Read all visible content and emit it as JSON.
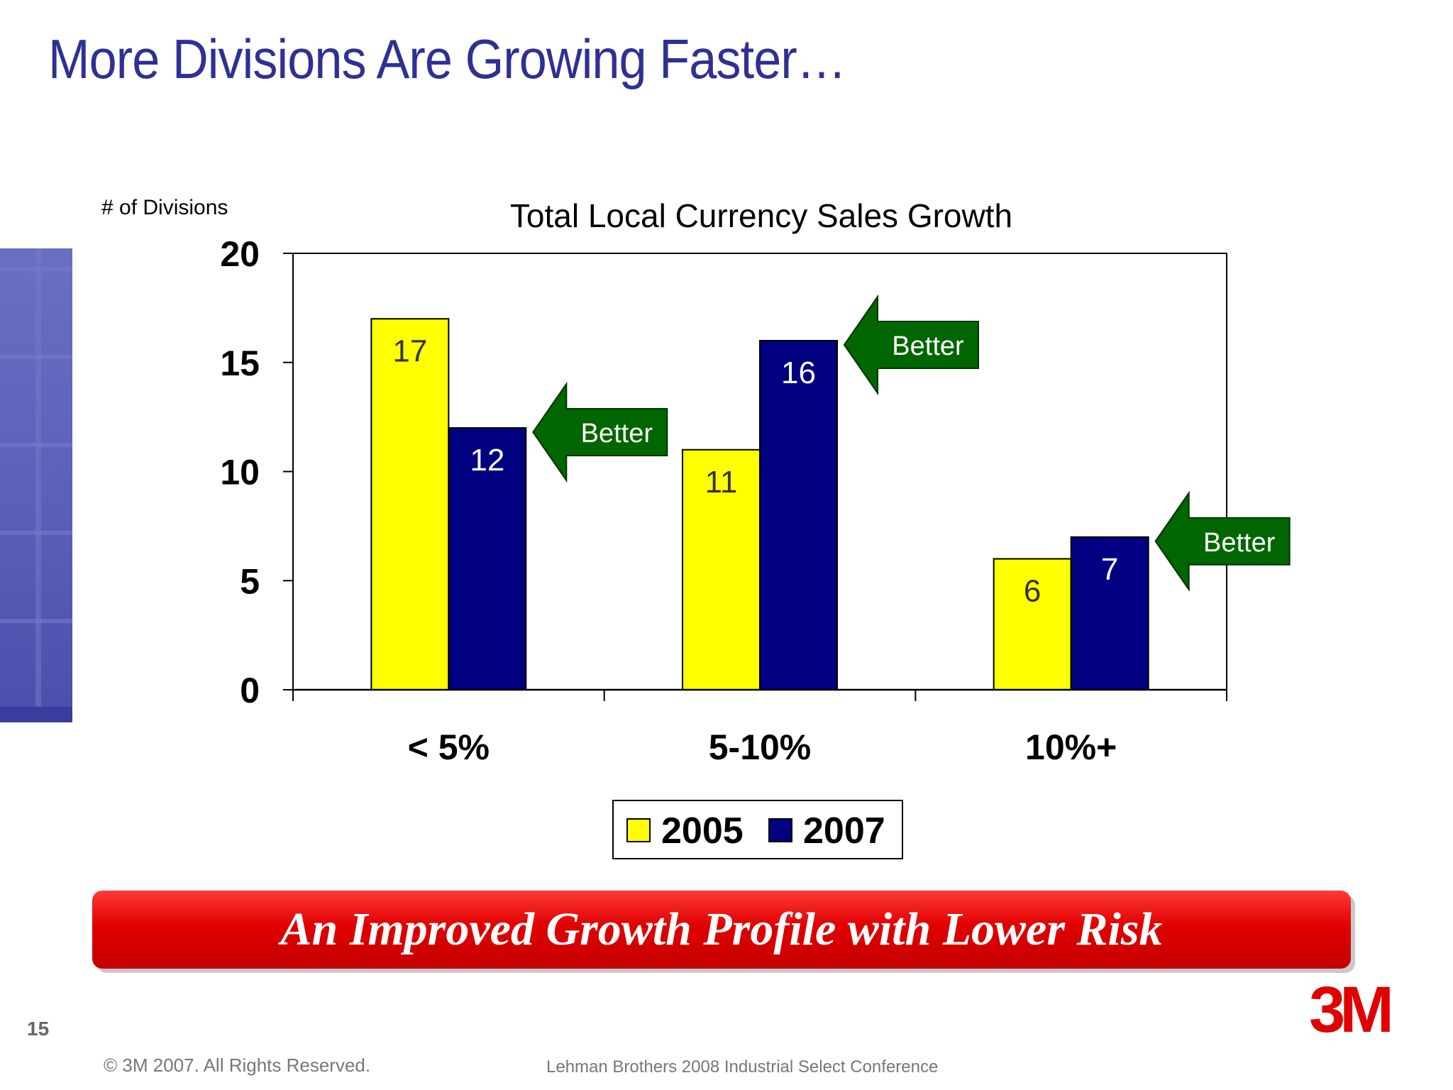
{
  "slide": {
    "title": "More Divisions Are Growing Faster…",
    "banner": "An Improved Growth Profile with Lower Risk",
    "page_number": "15",
    "copyright": "© 3M 2007.  All Rights Reserved.",
    "conference": "Lehman Brothers 2008 Industrial Select Conference",
    "logo_text": "3M"
  },
  "chart_data": {
    "type": "bar",
    "title": "Total Local Currency Sales Growth",
    "ylabel": "# of Divisions",
    "xlabel": "",
    "categories": [
      "< 5%",
      "5-10%",
      "10%+"
    ],
    "series": [
      {
        "name": "2005",
        "values": [
          17,
          11,
          6
        ],
        "color": "#ffff00"
      },
      {
        "name": "2007",
        "values": [
          12,
          16,
          7
        ],
        "color": "#000080"
      }
    ],
    "ylim": [
      0,
      20
    ],
    "yticks": [
      "0",
      "5",
      "10",
      "15",
      "20"
    ],
    "data_labels": true,
    "data_label_colors": {
      "2005": "#333333",
      "2007": "#ffffff"
    },
    "legend": {
      "placement": "bottom"
    },
    "grid": false,
    "annotations": [
      {
        "text": "Better",
        "category_index": 0,
        "series_index": 1
      },
      {
        "text": "Better",
        "category_index": 1,
        "series_index": 1
      },
      {
        "text": "Better",
        "category_index": 2,
        "series_index": 1
      }
    ],
    "annotation_color": "#006600"
  }
}
